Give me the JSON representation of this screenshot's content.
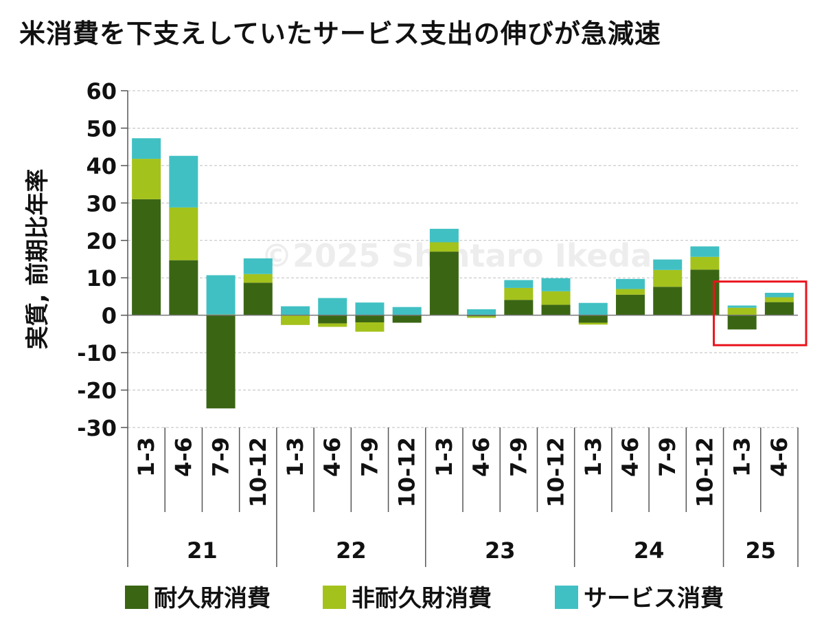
{
  "title": "米消費を下支えしていたサービス支出の伸びが急減速",
  "watermark": "©2025 Shintaro Ikeda",
  "chart_data": {
    "type": "bar",
    "stacked": true,
    "ylabel": "実質, 前期比年率",
    "ylim": [
      -30,
      60
    ],
    "yticks": [
      60,
      50,
      40,
      30,
      20,
      10,
      0,
      -10,
      -20,
      -30
    ],
    "grid": true,
    "legend_position": "bottom",
    "categories": [
      "1-3",
      "4-6",
      "7-9",
      "10-12",
      "1-3",
      "4-6",
      "7-9",
      "10-12",
      "1-3",
      "4-6",
      "7-9",
      "10-12",
      "1-3",
      "4-6",
      "7-9",
      "10-12",
      "1-3",
      "4-6"
    ],
    "year_groups": [
      {
        "label": "21",
        "count": 4
      },
      {
        "label": "22",
        "count": 4
      },
      {
        "label": "23",
        "count": 4
      },
      {
        "label": "24",
        "count": 4
      },
      {
        "label": "25",
        "count": 2
      }
    ],
    "series": [
      {
        "name": "耐久財消費",
        "color": "#3a6614",
        "values": [
          31,
          14.7,
          -24.9,
          8.7,
          0,
          -2.2,
          -1.9,
          -2.0,
          17.0,
          -0.3,
          4.1,
          2.8,
          -2.0,
          5.5,
          7.6,
          12.2,
          -3.8,
          3.5
        ]
      },
      {
        "name": "非耐久財消費",
        "color": "#a4c21c",
        "values": [
          10.8,
          14.1,
          0.2,
          2.3,
          -2.6,
          -0.9,
          -2.5,
          0,
          2.5,
          -0.4,
          3.2,
          3.6,
          -0.5,
          1.5,
          4.5,
          3.4,
          2.0,
          1.3
        ]
      },
      {
        "name": "サービス消費",
        "color": "#41c0c3",
        "values": [
          5.5,
          13.8,
          10.5,
          4.2,
          2.4,
          4.6,
          3.4,
          2.2,
          3.6,
          1.6,
          2.1,
          3.5,
          3.3,
          2.7,
          2.8,
          2.8,
          0.6,
          1.2
        ]
      }
    ],
    "highlight_categories": [
      16,
      17
    ],
    "highlight_color": "#e8141c"
  }
}
